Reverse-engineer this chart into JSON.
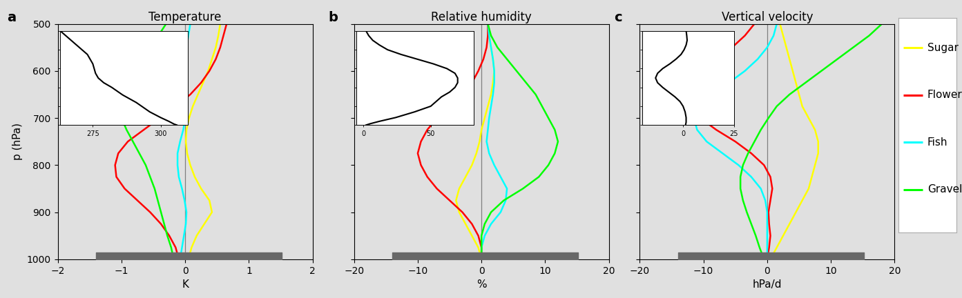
{
  "fig_width": 13.93,
  "fig_height": 4.32,
  "background_color": "#e0e0e0",
  "pressure_levels": [
    500,
    525,
    550,
    575,
    600,
    625,
    650,
    675,
    700,
    725,
    750,
    775,
    800,
    825,
    850,
    875,
    900,
    925,
    950,
    975,
    1000
  ],
  "colors": {
    "Sugar": "#ffff00",
    "Flower": "#ff0000",
    "Fish": "#00ffff",
    "Gravel": "#00ff00"
  },
  "panel_a": {
    "title": "Temperature",
    "xlabel": "K",
    "xlim": [
      -2,
      2
    ],
    "xticks": [
      -2,
      -1,
      0,
      1,
      2
    ],
    "yticks": [
      500,
      600,
      700,
      800,
      900,
      1000
    ],
    "ylabel": "p (hPa)",
    "Sugar": [
      0.55,
      0.52,
      0.48,
      0.42,
      0.36,
      0.28,
      0.2,
      0.12,
      0.06,
      0.02,
      0.01,
      0.03,
      0.08,
      0.15,
      0.25,
      0.38,
      0.42,
      0.3,
      0.18,
      0.1,
      0.05
    ],
    "Flower": [
      0.65,
      0.6,
      0.55,
      0.48,
      0.38,
      0.25,
      0.08,
      -0.15,
      -0.4,
      -0.65,
      -0.9,
      -1.05,
      -1.1,
      -1.08,
      -0.95,
      -0.75,
      -0.55,
      -0.38,
      -0.25,
      -0.15,
      -0.1
    ],
    "Fish": [
      0.08,
      0.05,
      0.02,
      -0.02,
      -0.05,
      -0.05,
      -0.03,
      -0.01,
      0.0,
      -0.03,
      -0.08,
      -0.12,
      -0.12,
      -0.1,
      -0.05,
      -0.01,
      0.02,
      0.01,
      -0.02,
      -0.05,
      -0.08
    ],
    "Gravel": [
      -0.3,
      -0.42,
      -0.55,
      -0.7,
      -0.85,
      -0.98,
      -1.05,
      -1.05,
      -1.0,
      -0.92,
      -0.82,
      -0.72,
      -0.62,
      -0.55,
      -0.48,
      -0.43,
      -0.38,
      -0.33,
      -0.28,
      -0.22,
      -0.18
    ]
  },
  "panel_b": {
    "title": "Relative humidity",
    "xlabel": "%",
    "xlim": [
      -20,
      20
    ],
    "xticks": [
      -20,
      -10,
      0,
      10,
      20
    ],
    "Sugar": [
      1.0,
      1.2,
      1.5,
      1.8,
      2.0,
      1.8,
      1.5,
      1.0,
      0.5,
      0.0,
      -0.3,
      -0.8,
      -1.5,
      -2.5,
      -3.5,
      -4.0,
      -3.5,
      -2.5,
      -1.5,
      -0.5,
      0.0
    ],
    "Flower": [
      1.0,
      1.0,
      0.8,
      0.3,
      -0.5,
      -1.5,
      -3.0,
      -5.0,
      -7.0,
      -8.5,
      -9.5,
      -10.0,
      -9.5,
      -8.5,
      -7.0,
      -5.0,
      -3.0,
      -1.5,
      -0.5,
      0.0,
      0.0
    ],
    "Fish": [
      1.0,
      1.2,
      1.5,
      1.8,
      2.0,
      2.0,
      1.8,
      1.5,
      1.2,
      1.0,
      0.8,
      1.2,
      2.0,
      3.0,
      4.0,
      3.8,
      3.0,
      1.5,
      0.5,
      0.0,
      0.0
    ],
    "Gravel": [
      1.0,
      1.5,
      2.5,
      4.0,
      5.5,
      7.0,
      8.5,
      9.5,
      10.5,
      11.5,
      12.0,
      11.5,
      10.5,
      9.0,
      6.5,
      3.5,
      1.5,
      0.5,
      0.0,
      0.0,
      0.0
    ]
  },
  "panel_c": {
    "title": "Vertical velocity",
    "xlabel": "hPa/d",
    "xlim": [
      -20,
      20
    ],
    "xticks": [
      -20,
      -10,
      0,
      10,
      20
    ],
    "Sugar": [
      2.0,
      2.5,
      3.0,
      3.5,
      4.0,
      4.5,
      5.0,
      5.5,
      6.5,
      7.5,
      8.0,
      8.0,
      7.5,
      7.0,
      6.5,
      5.5,
      4.5,
      3.5,
      2.5,
      1.5,
      0.5
    ],
    "Flower": [
      -2.0,
      -3.5,
      -5.5,
      -7.5,
      -9.5,
      -11.0,
      -12.0,
      -12.0,
      -10.5,
      -8.0,
      -5.0,
      -2.5,
      -0.5,
      0.5,
      0.8,
      0.5,
      0.2,
      0.3,
      0.5,
      0.3,
      0.0
    ],
    "Fish": [
      1.5,
      1.0,
      0.0,
      -1.5,
      -3.5,
      -6.0,
      -8.5,
      -10.5,
      -11.5,
      -11.0,
      -9.5,
      -7.0,
      -4.5,
      -2.5,
      -1.0,
      -0.3,
      0.0,
      0.0,
      0.0,
      0.0,
      0.0
    ],
    "Gravel": [
      18.0,
      16.0,
      13.5,
      11.0,
      8.5,
      6.0,
      3.5,
      1.5,
      0.2,
      -1.0,
      -2.0,
      -3.0,
      -3.8,
      -4.2,
      -4.2,
      -3.8,
      -3.2,
      -2.5,
      -1.8,
      -1.2,
      -0.5
    ]
  },
  "inset_a": {
    "T": [
      263,
      265,
      267,
      269,
      271,
      273,
      274,
      275,
      275.5,
      276,
      277,
      279,
      282,
      286,
      291,
      296,
      300,
      303,
      305,
      306
    ],
    "p": [
      500,
      525,
      550,
      575,
      600,
      625,
      650,
      675,
      700,
      725,
      750,
      775,
      800,
      840,
      880,
      930,
      960,
      980,
      995,
      1000
    ],
    "xlim": [
      263,
      310
    ],
    "xticks": [
      275,
      300
    ],
    "xtick_labels": [
      "275",
      "300"
    ]
  },
  "inset_b": {
    "RH": [
      2,
      4,
      7,
      12,
      18,
      28,
      40,
      52,
      62,
      68,
      70,
      70,
      68,
      64,
      58,
      50,
      38,
      24,
      12,
      5,
      2
    ],
    "p": [
      500,
      525,
      550,
      575,
      600,
      625,
      650,
      675,
      700,
      725,
      750,
      775,
      800,
      825,
      850,
      900,
      930,
      960,
      980,
      993,
      1000
    ],
    "xlim": [
      -5,
      82
    ],
    "xticks": [
      0,
      50
    ],
    "xtick_labels": [
      "0",
      "50"
    ]
  },
  "inset_c": {
    "omega": [
      1.5,
      1.8,
      2.0,
      1.5,
      0.5,
      -1.0,
      -3.5,
      -6.5,
      -10.0,
      -12.5,
      -13.5,
      -12.5,
      -10.0,
      -7.0,
      -4.0,
      -1.5,
      0.0,
      1.0,
      1.5,
      1.5,
      1.2
    ],
    "p": [
      500,
      525,
      550,
      575,
      600,
      625,
      650,
      675,
      700,
      725,
      750,
      775,
      800,
      825,
      850,
      875,
      900,
      930,
      960,
      985,
      1000
    ],
    "xlim": [
      -20,
      8
    ],
    "xticks": [
      0,
      25
    ],
    "xtick_labels": [
      "0",
      "25"
    ]
  },
  "legend_entries": [
    "Sugar",
    "Flower",
    "Fish",
    "Gravel"
  ]
}
